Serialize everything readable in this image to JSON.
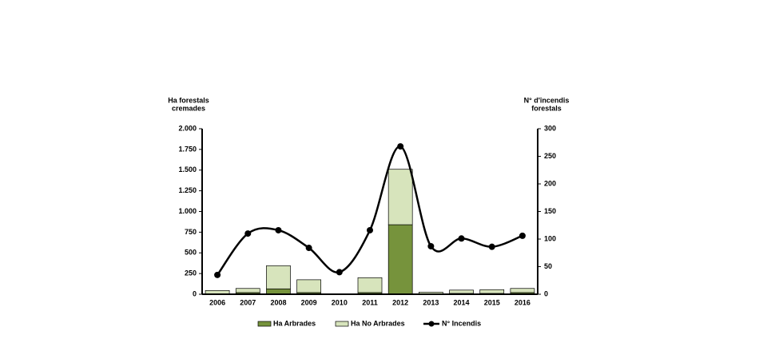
{
  "chart_data": {
    "type": "bar",
    "y_label": [
      "Ha forestals",
      "cremades"
    ],
    "y2_label": [
      "N° d'incendis",
      "forestals"
    ],
    "categories": [
      "2006",
      "2007",
      "2008",
      "2009",
      "2010",
      "2011",
      "2012",
      "2013",
      "2014",
      "2015",
      "2016"
    ],
    "series": [
      {
        "name": "Ha Arbrades",
        "type": "bar",
        "color": "#76933c",
        "values": [
          5,
          20,
          65,
          20,
          0,
          20,
          840,
          5,
          10,
          10,
          20
        ]
      },
      {
        "name": "Ha No Arbrades",
        "type": "bar",
        "color": "#d7e4bc",
        "values": [
          40,
          50,
          280,
          155,
          0,
          180,
          670,
          20,
          40,
          45,
          50
        ]
      },
      {
        "name": "N° Incendis",
        "type": "line",
        "axis": "y2",
        "color": "#000000",
        "values": [
          35,
          110,
          116,
          84,
          40,
          116,
          268,
          87,
          101,
          86,
          106
        ]
      }
    ],
    "ylim": [
      0,
      2000
    ],
    "yticks": [
      0,
      250,
      500,
      750,
      {
        "value": 1000,
        "label": "1.000"
      },
      {
        "value": 1250,
        "label": "1.250"
      },
      {
        "value": 1500,
        "label": "1.500"
      },
      {
        "value": 1750,
        "label": "1.750"
      },
      {
        "value": 2000,
        "label": "2.000"
      }
    ],
    "y2lim": [
      0,
      300
    ],
    "y2ticks": [
      0,
      50,
      100,
      150,
      200,
      250,
      300
    ],
    "stacked": true,
    "grid": false
  }
}
